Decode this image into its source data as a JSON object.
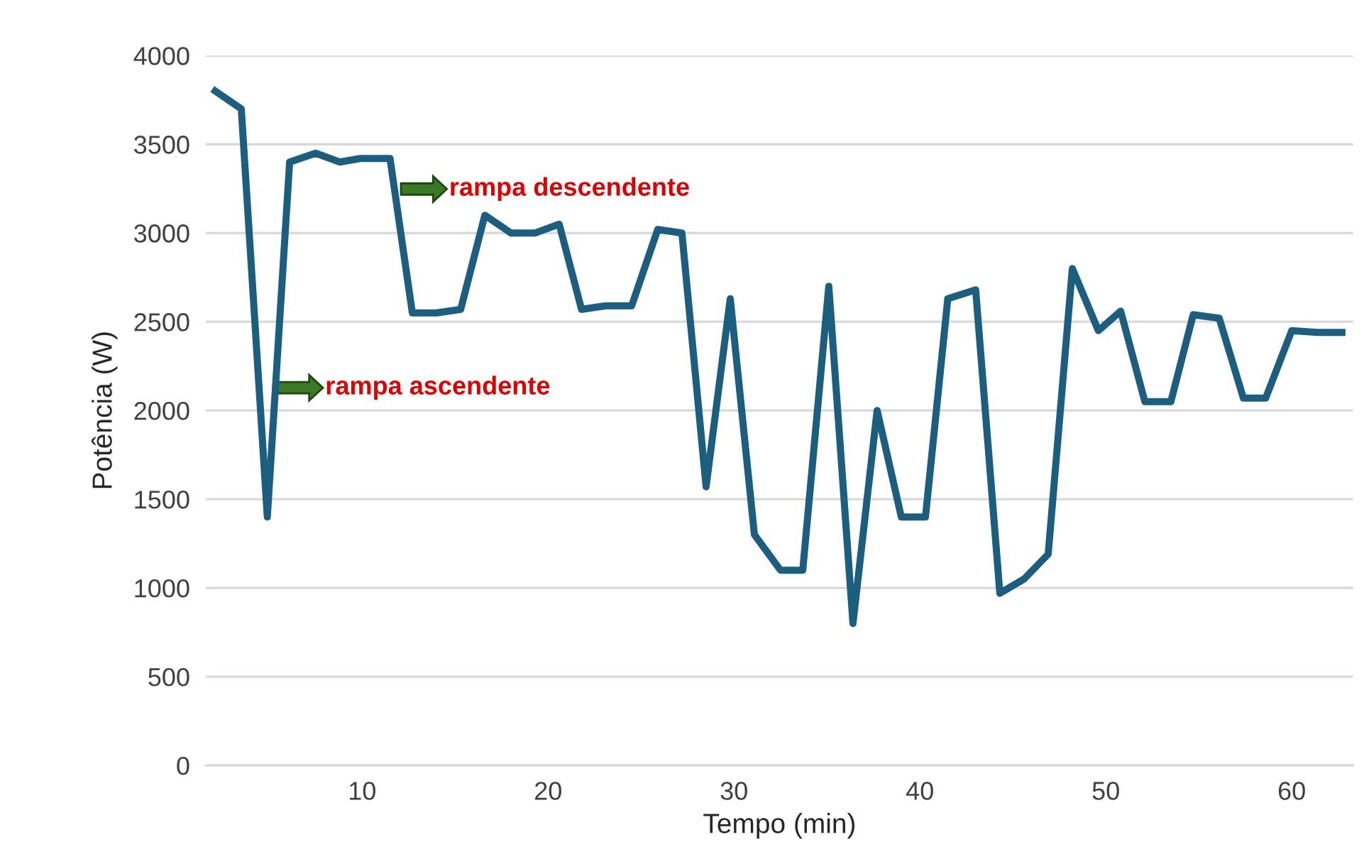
{
  "chart_data": {
    "type": "line",
    "xlabel": "Tempo (min)",
    "ylabel": "Potência (W)",
    "x": [
      2.1,
      3.5,
      4.9,
      6.1,
      7.5,
      8.8,
      9.9,
      11.5,
      12.7,
      14.0,
      15.3,
      16.6,
      18.0,
      19.3,
      20.6,
      21.8,
      23.1,
      24.5,
      25.9,
      27.2,
      28.5,
      29.8,
      31.1,
      32.5,
      33.7,
      35.1,
      36.4,
      37.7,
      39.0,
      40.3,
      41.5,
      43.0,
      44.3,
      45.6,
      46.9,
      48.2,
      49.6,
      50.8,
      52.1,
      53.5,
      54.7,
      56.1,
      57.4,
      58.6,
      60.0,
      61.4,
      62.7
    ],
    "series": [
      {
        "color": "#1b5e80",
        "values": [
          3800,
          3700,
          1400,
          3400,
          3450,
          3400,
          3420,
          3420,
          2550,
          2550,
          2570,
          3100,
          3000,
          3000,
          3050,
          2570,
          2590,
          2590,
          3020,
          3000,
          1570,
          2630,
          1300,
          1100,
          1100,
          2700,
          800,
          2000,
          1400,
          1400,
          2630,
          2680,
          970,
          1050,
          1190,
          2800,
          2450,
          2560,
          2050,
          2050,
          2540,
          2520,
          2070,
          2070,
          2450,
          2440,
          2440
        ]
      }
    ],
    "xlim": [
      1.6,
      63.3
    ],
    "xticks": [
      10,
      20,
      30,
      40,
      50,
      60
    ],
    "ylim": [
      0,
      4000
    ],
    "yticks": [
      0,
      500,
      1000,
      1500,
      2000,
      2500,
      3000,
      3500,
      4000
    ],
    "grid": "y",
    "marker": "none",
    "line_style": "solid",
    "annotations": [
      "rampa descendente",
      "rampa ascendente"
    ]
  }
}
